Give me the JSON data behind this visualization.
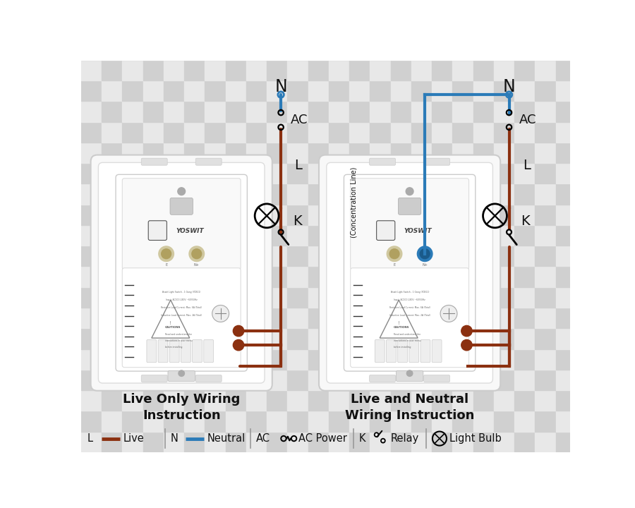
{
  "bg_color": "#e0e0e0",
  "checker_light": "#e8e8e8",
  "checker_dark": "#d0d0d0",
  "checker_size": 0.38,
  "live_color": "#8B3010",
  "neutral_color": "#2B7BB8",
  "text_color": "#111111",
  "title1": "Live Only Wiring\nInstruction",
  "title2": "Live and Neutral\nWiring Instruction",
  "wire_lw": 3.0,
  "fig_w": 9.0,
  "fig_h": 7.2,
  "xlim": [
    0,
    9
  ],
  "ylim": [
    0,
    7.2
  ]
}
